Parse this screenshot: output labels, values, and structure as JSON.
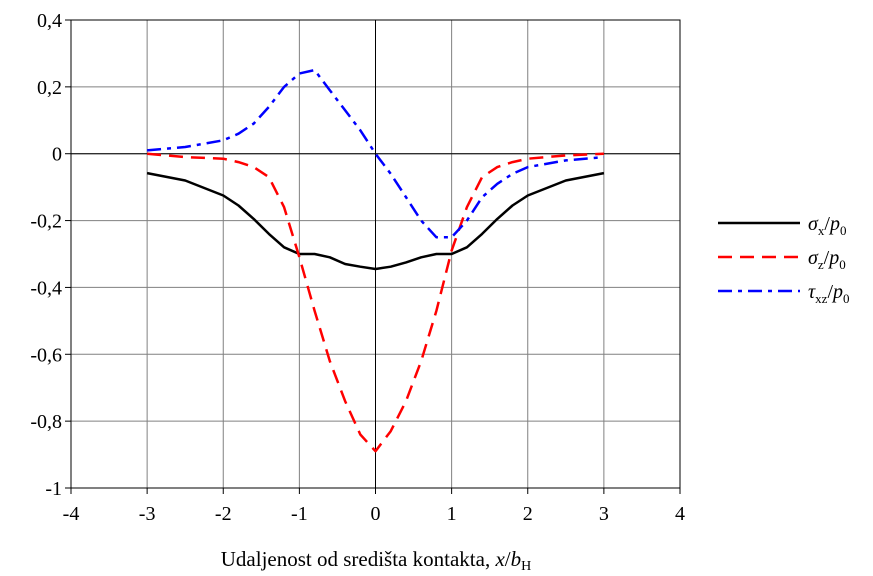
{
  "chart_data": {
    "type": "line",
    "title": "",
    "xlabel": {
      "text": "Udaljenost od središta kontakta, ",
      "var_x": "x",
      "slash": "/",
      "var_b": "b",
      "sub": "H"
    },
    "ylabel": "",
    "xlim": [
      -4,
      4
    ],
    "ylim": [
      -1,
      0.4
    ],
    "x_ticks": [
      -4,
      -3,
      -2,
      -1,
      0,
      1,
      2,
      3,
      4
    ],
    "x_tick_labels": [
      "-4",
      "-3",
      "-2",
      "-1",
      "0",
      "1",
      "2",
      "3",
      "4"
    ],
    "y_ticks": [
      0.4,
      0.2,
      0,
      -0.2,
      -0.4,
      -0.6,
      -0.8,
      -1
    ],
    "y_tick_labels": [
      "0,4",
      "0,2",
      "0",
      "-0,2",
      "-0,4",
      "-0,6",
      "-0,8",
      "-1"
    ],
    "grid": true,
    "legend_position": "right",
    "series": [
      {
        "name": "σx/p0",
        "legend": {
          "sym": "σ",
          "sub": "x",
          "slash": "/",
          "var": "p",
          "sub2": "0"
        },
        "color": "#000000",
        "dash": "solid",
        "x": [
          -3,
          -2.5,
          -2,
          -1.8,
          -1.6,
          -1.4,
          -1.2,
          -1,
          -0.8,
          -0.6,
          -0.4,
          -0.2,
          0,
          0.2,
          0.4,
          0.6,
          0.8,
          1,
          1.2,
          1.4,
          1.6,
          1.8,
          2,
          2.5,
          3
        ],
        "y": [
          -0.058,
          -0.08,
          -0.125,
          -0.155,
          -0.195,
          -0.24,
          -0.28,
          -0.3,
          -0.3,
          -0.31,
          -0.33,
          -0.338,
          -0.345,
          -0.338,
          -0.325,
          -0.31,
          -0.3,
          -0.3,
          -0.28,
          -0.24,
          -0.195,
          -0.155,
          -0.125,
          -0.08,
          -0.058
        ]
      },
      {
        "name": "σz/p0",
        "legend": {
          "sym": "σ",
          "sub": "z",
          "slash": "/",
          "var": "p",
          "sub2": "0"
        },
        "color": "#ff0000",
        "dash": "dashed",
        "x": [
          -3,
          -2.5,
          -2,
          -1.8,
          -1.6,
          -1.4,
          -1.2,
          -1,
          -0.8,
          -0.6,
          -0.4,
          -0.2,
          0,
          0.2,
          0.4,
          0.6,
          0.8,
          1,
          1.2,
          1.4,
          1.6,
          1.8,
          2,
          2.5,
          3
        ],
        "y": [
          0,
          -0.01,
          -0.015,
          -0.025,
          -0.04,
          -0.07,
          -0.16,
          -0.31,
          -0.47,
          -0.62,
          -0.74,
          -0.84,
          -0.89,
          -0.83,
          -0.74,
          -0.62,
          -0.47,
          -0.29,
          -0.16,
          -0.07,
          -0.04,
          -0.025,
          -0.015,
          -0.005,
          0
        ]
      },
      {
        "name": "τxz/p0",
        "legend": {
          "sym": "τ",
          "sub": "xz",
          "slash": "/",
          "var": "p",
          "sub2": "0"
        },
        "color": "#0000ff",
        "dash": "dashdot",
        "x": [
          -3,
          -2.5,
          -2,
          -1.8,
          -1.6,
          -1.4,
          -1.2,
          -1,
          -0.8,
          -0.6,
          -0.4,
          -0.2,
          0,
          0.2,
          0.4,
          0.6,
          0.8,
          1,
          1.2,
          1.4,
          1.6,
          1.8,
          2,
          2.5,
          3
        ],
        "y": [
          0.01,
          0.02,
          0.04,
          0.06,
          0.09,
          0.14,
          0.2,
          0.24,
          0.25,
          0.19,
          0.13,
          0.07,
          0,
          -0.06,
          -0.13,
          -0.2,
          -0.25,
          -0.25,
          -0.2,
          -0.13,
          -0.09,
          -0.06,
          -0.04,
          -0.02,
          -0.01
        ]
      }
    ]
  }
}
